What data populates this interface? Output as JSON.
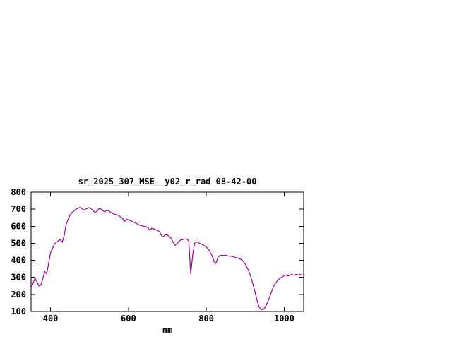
{
  "chart_data": {
    "type": "line",
    "title": "sr_2025_307_MSE__y02_r_rad 08-42-00",
    "xlabel": "nm",
    "ylabel": "",
    "xlim": [
      350,
      1050
    ],
    "ylim": [
      100,
      800
    ],
    "x_ticks": [
      400,
      600,
      800,
      1000
    ],
    "y_ticks": [
      100,
      200,
      300,
      400,
      500,
      600,
      700,
      800
    ],
    "grid": false,
    "legend": "none",
    "line_color": "#a000a0",
    "axis_color": "#000000",
    "background_color": "#ffffff",
    "series": [
      {
        "name": "sr_2025_307_MSE__y02_r_rad",
        "x": [
          350,
          355,
          360,
          365,
          370,
          375,
          380,
          385,
          390,
          395,
          400,
          405,
          410,
          415,
          420,
          425,
          430,
          435,
          440,
          445,
          450,
          455,
          460,
          465,
          470,
          475,
          480,
          485,
          490,
          495,
          500,
          505,
          510,
          515,
          520,
          525,
          530,
          535,
          540,
          545,
          550,
          555,
          560,
          565,
          570,
          575,
          580,
          585,
          590,
          595,
          600,
          605,
          610,
          615,
          620,
          625,
          630,
          635,
          640,
          645,
          650,
          655,
          660,
          665,
          670,
          675,
          680,
          685,
          690,
          695,
          700,
          705,
          710,
          715,
          720,
          725,
          730,
          735,
          740,
          745,
          750,
          755,
          760,
          765,
          770,
          775,
          780,
          785,
          790,
          795,
          800,
          805,
          810,
          815,
          820,
          825,
          830,
          835,
          840,
          845,
          850,
          855,
          860,
          865,
          870,
          875,
          880,
          885,
          890,
          895,
          900,
          905,
          910,
          915,
          920,
          925,
          930,
          935,
          940,
          945,
          950,
          955,
          960,
          965,
          970,
          975,
          980,
          985,
          990,
          995,
          1000,
          1005,
          1010,
          1015,
          1020,
          1025,
          1030,
          1035,
          1040,
          1045,
          1050
        ],
        "y": [
          240,
          265,
          295,
          275,
          250,
          255,
          290,
          335,
          320,
          380,
          445,
          470,
          495,
          505,
          515,
          520,
          505,
          545,
          610,
          640,
          665,
          680,
          690,
          700,
          705,
          710,
          705,
          695,
          700,
          705,
          710,
          700,
          690,
          680,
          690,
          705,
          700,
          690,
          685,
          695,
          690,
          680,
          675,
          668,
          668,
          662,
          655,
          645,
          628,
          640,
          638,
          632,
          628,
          622,
          618,
          610,
          605,
          602,
          600,
          598,
          592,
          575,
          588,
          585,
          580,
          575,
          568,
          545,
          538,
          552,
          548,
          540,
          528,
          505,
          488,
          498,
          512,
          520,
          522,
          526,
          524,
          515,
          320,
          430,
          500,
          508,
          503,
          498,
          492,
          486,
          478,
          466,
          448,
          425,
          392,
          382,
          418,
          428,
          430,
          428,
          430,
          426,
          424,
          424,
          420,
          416,
          414,
          410,
          404,
          394,
          378,
          358,
          330,
          298,
          258,
          215,
          168,
          130,
          113,
          110,
          122,
          142,
          168,
          200,
          232,
          256,
          272,
          286,
          296,
          302,
          310,
          314,
          308,
          314,
          318,
          312,
          318,
          314,
          318,
          313,
          316
        ]
      }
    ]
  }
}
